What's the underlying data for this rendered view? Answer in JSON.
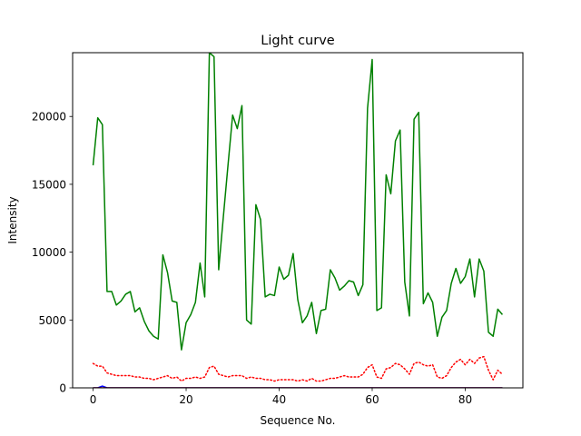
{
  "chart_data": {
    "type": "line",
    "title": "Light curve",
    "xlabel": "Sequence No.",
    "ylabel": "Intensity",
    "xlim": [
      -4.4,
      92.4
    ],
    "ylim": [
      0,
      24700
    ],
    "xticks": [
      0,
      20,
      40,
      60,
      80
    ],
    "yticks": [
      0,
      5000,
      10000,
      15000,
      20000
    ],
    "grid": false,
    "legend": "none",
    "series": [
      {
        "color": "#008000",
        "style": "solid",
        "x": [
          0,
          1,
          2,
          3,
          4,
          5,
          6,
          7,
          8,
          9,
          10,
          11,
          12,
          13,
          14,
          15,
          16,
          17,
          18,
          19,
          20,
          21,
          22,
          23,
          24,
          25,
          26,
          27,
          28,
          29,
          30,
          31,
          32,
          33,
          34,
          35,
          36,
          37,
          38,
          39,
          40,
          41,
          42,
          43,
          44,
          45,
          46,
          47,
          48,
          49,
          50,
          51,
          52,
          53,
          54,
          55,
          56,
          57,
          58,
          59,
          60,
          61,
          62,
          63,
          64,
          65,
          66,
          67,
          68,
          69,
          70,
          71,
          72,
          73,
          74,
          75,
          76,
          77,
          78,
          79,
          80,
          81,
          82,
          83,
          84,
          85,
          86,
          87,
          88
        ],
        "values": [
          16400,
          19900,
          19400,
          7100,
          7100,
          6100,
          6400,
          6900,
          7100,
          5600,
          5900,
          4900,
          4200,
          3800,
          3600,
          9800,
          8500,
          6400,
          6300,
          2800,
          4800,
          5400,
          6300,
          9200,
          6700,
          24700,
          24400,
          8700,
          12600,
          16400,
          20100,
          19100,
          20800,
          5000,
          4700,
          13500,
          12400,
          6700,
          6900,
          6800,
          8900,
          8000,
          8300,
          9900,
          6500,
          4800,
          5300,
          6300,
          4000,
          5700,
          5800,
          8700,
          8100,
          7200,
          7500,
          7900,
          7800,
          6800,
          7600,
          20600,
          24200,
          5700,
          5900,
          15700,
          14300,
          18200,
          19000,
          7800,
          5300,
          19800,
          20300,
          6200,
          7000,
          6300,
          3800,
          5200,
          5700,
          7700,
          8800,
          7700,
          8200,
          9500,
          6700,
          9500,
          8600,
          4100,
          3800,
          5800,
          5400
        ]
      },
      {
        "color": "#ff0000",
        "style": "dotted",
        "x": [
          0,
          1,
          2,
          3,
          4,
          5,
          6,
          7,
          8,
          9,
          10,
          11,
          12,
          13,
          14,
          15,
          16,
          17,
          18,
          19,
          20,
          21,
          22,
          23,
          24,
          25,
          26,
          27,
          28,
          29,
          30,
          31,
          32,
          33,
          34,
          35,
          36,
          37,
          38,
          39,
          40,
          41,
          42,
          43,
          44,
          45,
          46,
          47,
          48,
          49,
          50,
          51,
          52,
          53,
          54,
          55,
          56,
          57,
          58,
          59,
          60,
          61,
          62,
          63,
          64,
          65,
          66,
          67,
          68,
          69,
          70,
          71,
          72,
          73,
          74,
          75,
          76,
          77,
          78,
          79,
          80,
          81,
          82,
          83,
          84,
          85,
          86,
          87,
          88
        ],
        "values": [
          1800,
          1600,
          1600,
          1100,
          1000,
          900,
          900,
          900,
          900,
          800,
          800,
          700,
          700,
          600,
          700,
          800,
          900,
          700,
          800,
          500,
          700,
          700,
          800,
          700,
          800,
          1500,
          1600,
          1000,
          900,
          800,
          900,
          900,
          900,
          700,
          800,
          700,
          700,
          600,
          600,
          500,
          600,
          600,
          600,
          600,
          500,
          600,
          500,
          700,
          500,
          500,
          600,
          700,
          700,
          800,
          900,
          800,
          800,
          800,
          1000,
          1500,
          1700,
          800,
          700,
          1400,
          1500,
          1800,
          1700,
          1400,
          1000,
          1800,
          1900,
          1700,
          1600,
          1700,
          800,
          700,
          900,
          1500,
          1900,
          2100,
          1700,
          2100,
          1800,
          2200,
          2300,
          1300,
          600,
          1300,
          1000
        ]
      },
      {
        "color": "#0000ff",
        "style": "solid",
        "x": [
          0,
          1,
          2,
          3,
          4,
          88
        ],
        "values": [
          0,
          0,
          130,
          0,
          0,
          0
        ]
      },
      {
        "color": "#8b0000",
        "style": "solid",
        "x": [
          0,
          88
        ],
        "values": [
          0,
          0
        ]
      }
    ]
  }
}
